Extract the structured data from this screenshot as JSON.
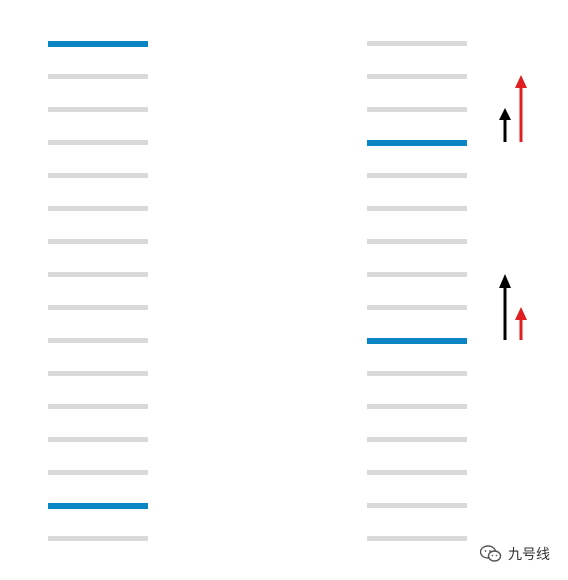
{
  "diagram": {
    "left_column": {
      "line_count": 16,
      "highlighted_indices": [
        0,
        14
      ]
    },
    "right_column": {
      "line_count": 16,
      "highlighted_indices": [
        3,
        9
      ]
    },
    "arrow_groups": [
      {
        "black_relative_height": "short",
        "red_relative_height": "tall"
      },
      {
        "black_relative_height": "tall",
        "red_relative_height": "short"
      }
    ]
  },
  "colors": {
    "line": "#d9d9d9",
    "highlight": "#0a86c4",
    "arrow_black": "#000000",
    "arrow_red": "#e02020"
  },
  "watermark": {
    "text": "九号线",
    "icon": "wechat-icon"
  }
}
